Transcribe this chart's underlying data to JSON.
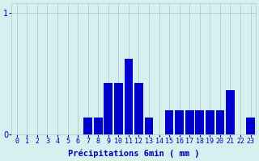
{
  "values": [
    0,
    0,
    0,
    0,
    0,
    0,
    0,
    0.14,
    0.14,
    0.42,
    0.42,
    0.62,
    0.42,
    0.14,
    0,
    0.2,
    0.2,
    0.2,
    0.2,
    0.2,
    0.2,
    0.36,
    0,
    0.14
  ],
  "xlabel": "Précipitations 6min ( mm )",
  "ylim_max": 1.08,
  "yticks": [
    0,
    1
  ],
  "bar_color": "#0000cc",
  "bg_color": "#d6f0f0",
  "grid_color": "#b0c8c8",
  "tick_color": "#0000aa",
  "label_color": "#0000aa",
  "tick_fontsize": 6,
  "label_fontsize": 7.5
}
